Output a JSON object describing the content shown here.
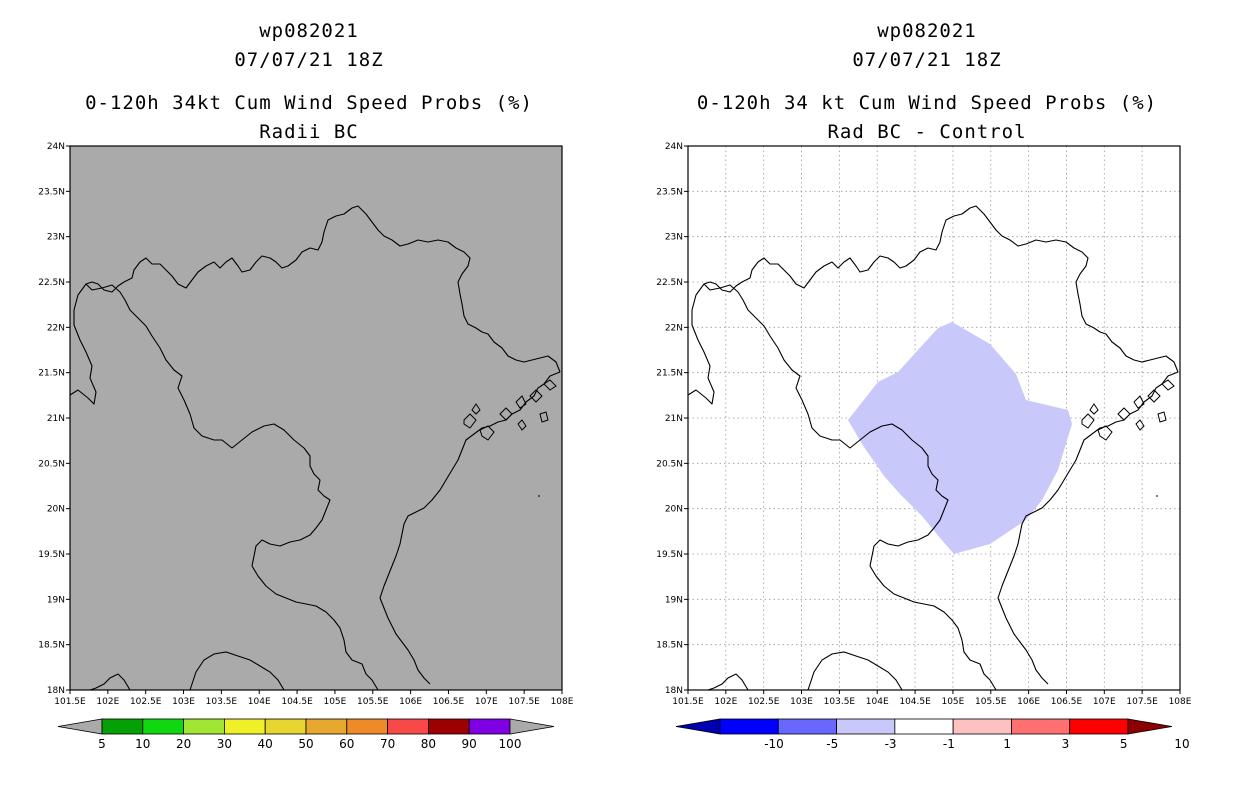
{
  "panel_left": {
    "storm_id": "wp082021",
    "datetime": "07/07/21 18Z",
    "title": "0-120h 34kt Cum Wind Speed Probs (%)",
    "subtitle": "Radii BC",
    "fill_color": "#aaaaaa",
    "colorbar": {
      "labels": [
        "5",
        "10",
        "20",
        "30",
        "40",
        "50",
        "60",
        "70",
        "80",
        "90",
        "100"
      ],
      "colors": [
        "#aaaaaa",
        "#05a005",
        "#10d810",
        "#a0e632",
        "#f0f028",
        "#e8d630",
        "#e6a82e",
        "#ef8a28",
        "#f84848",
        "#9c0000",
        "#8000e6",
        "#aaaaaa"
      ]
    }
  },
  "panel_right": {
    "storm_id": "wp082021",
    "datetime": "07/07/21 18Z",
    "title": "0-120h 34 kt Cum Wind Speed Probs (%)",
    "subtitle": "Rad BC - Control",
    "fill_color": "#c8c8fa",
    "colorbar": {
      "labels": [
        "-10",
        "-5",
        "-3",
        "-1",
        "1",
        "3",
        "5",
        "10"
      ],
      "colors": [
        "#0000b0",
        "#0000ff",
        "#6868ff",
        "#c8c8fa",
        "#ffffff",
        "#ffc0c0",
        "#ff7070",
        "#ff0000",
        "#8c0000"
      ]
    }
  },
  "axes": {
    "lat_labels": [
      "24N",
      "23.5N",
      "23N",
      "22.5N",
      "22N",
      "21.5N",
      "21N",
      "20.5N",
      "20N",
      "19.5N",
      "19N",
      "18.5N",
      "18N"
    ],
    "lon_labels": [
      "101.5E",
      "102E",
      "102.5E",
      "103E",
      "103.5E",
      "104E",
      "104.5E",
      "105E",
      "105.5E",
      "106E",
      "106.5E",
      "107E",
      "107.5E",
      "108E"
    ]
  }
}
